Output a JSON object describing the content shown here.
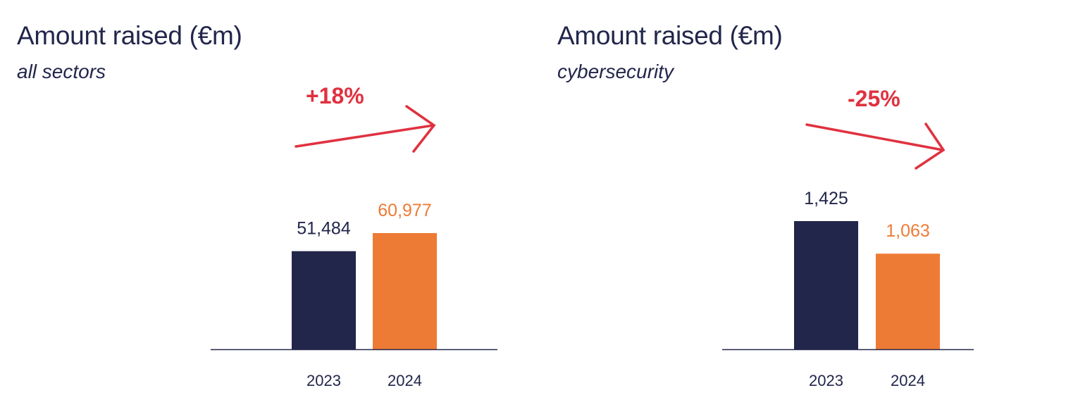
{
  "colors": {
    "navy": "#22264a",
    "orange": "#ee7b35",
    "red": "#e0313f",
    "axis": "#22264a"
  },
  "chart_data": [
    {
      "type": "bar",
      "title": "Amount raised (€m)",
      "subtitle": "all sectors",
      "categories": [
        "2023",
        "2024"
      ],
      "values": [
        51484,
        60977
      ],
      "value_labels": [
        "51,484",
        "60,977"
      ],
      "bar_colors": [
        "#22264a",
        "#ee7b35"
      ],
      "change_label": "+18%",
      "change_direction": "up",
      "grid": false,
      "legend": "none"
    },
    {
      "type": "bar",
      "title": "Amount raised (€m)",
      "subtitle": "cybersecurity",
      "categories": [
        "2023",
        "2024"
      ],
      "values": [
        1425,
        1063
      ],
      "value_labels": [
        "1,425",
        "1,063"
      ],
      "bar_colors": [
        "#22264a",
        "#ee7b35"
      ],
      "change_label": "-25%",
      "change_direction": "down",
      "grid": false,
      "legend": "none"
    }
  ]
}
